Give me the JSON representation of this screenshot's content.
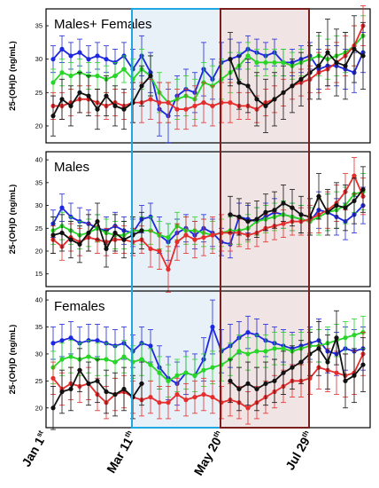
{
  "chart_data": {
    "type": "line",
    "x_date_labels": [
      {
        "main": "Jan 1",
        "sup": "st",
        "week": 1
      },
      {
        "main": "Mar 11",
        "sup": "th",
        "week": 11
      },
      {
        "main": "May 20",
        "sup": "th",
        "week": 21
      },
      {
        "main": "Jul 29",
        "sup": "th",
        "week": 31
      }
    ],
    "shaded_regions": [
      {
        "start_week": 11,
        "end_week": 21,
        "color": "#1ea7e0",
        "fill": "#e8f1f8"
      },
      {
        "start_week": 21,
        "end_week": 31,
        "color": "#7a1e1e",
        "fill": "#f1e4e4"
      }
    ],
    "series_colors": {
      "blue": "#1d27e0",
      "green": "#27d627",
      "red": "#e62c2c",
      "black": "#111111"
    },
    "panels": [
      {
        "title": "Males+ Females",
        "ylabel": "25-(OH)D (ng/mL)",
        "ylim": [
          18,
          37
        ],
        "yticks": [
          20,
          25,
          30,
          35
        ],
        "series": [
          {
            "color": "blue",
            "values": [
              30.0,
              31.5,
              30.5,
              31.0,
              30.0,
              30.5,
              30.0,
              29.5,
              30.5,
              28.5,
              30.5,
              28.0,
              22.5,
              21.5,
              24.5,
              25.5,
              25.0,
              28.5,
              27.0,
              29.5,
              30.0,
              30.5,
              31.5,
              31.0,
              30.5,
              31.0,
              29.5,
              29.5,
              30.0,
              30.5,
              28.5,
              29.0,
              29.0,
              28.5,
              28.0,
              31.0
            ],
            "err": [
              2,
              2,
              2,
              2,
              2,
              2,
              2,
              2,
              2,
              3,
              3,
              3,
              4,
              4,
              3,
              3,
              3,
              4,
              3,
              3,
              3,
              2,
              2,
              2,
              2,
              2,
              2,
              2,
              2,
              2,
              3,
              3,
              3,
              3,
              3,
              3
            ]
          },
          {
            "color": "green",
            "values": [
              26.5,
              28.0,
              27.5,
              28.0,
              27.5,
              27.5,
              27.0,
              27.5,
              28.5,
              27.0,
              28.5,
              27.5,
              25.0,
              23.5,
              24.0,
              24.5,
              24.0,
              26.5,
              26.0,
              27.0,
              28.0,
              29.0,
              30.5,
              29.5,
              29.5,
              29.5,
              29.5,
              29.0,
              29.5,
              30.0,
              30.5,
              30.0,
              30.5,
              31.0,
              32.0,
              33.5
            ],
            "err": [
              2,
              2,
              2,
              2,
              2,
              2,
              2,
              2,
              2,
              3,
              3,
              3,
              3,
              3,
              3,
              3,
              3,
              3,
              3,
              3,
              3,
              2,
              2,
              2,
              2,
              2,
              2,
              2,
              2,
              2,
              3,
              3,
              3,
              3,
              3,
              3
            ]
          },
          {
            "color": "red",
            "values": [
              23.0,
              23.0,
              23.5,
              24.0,
              24.0,
              23.5,
              23.0,
              23.5,
              23.0,
              23.5,
              23.5,
              24.0,
              23.5,
              23.5,
              22.5,
              22.5,
              23.0,
              23.5,
              23.0,
              23.5,
              23.5,
              23.0,
              23.0,
              22.5,
              23.5,
              24.0,
              25.0,
              26.0,
              26.5,
              27.0,
              28.0,
              28.5,
              29.5,
              30.5,
              32.0,
              35.0
            ],
            "err": [
              2,
              2,
              2,
              2,
              2,
              2,
              2,
              2,
              2,
              3,
              3,
              3,
              3,
              3,
              3,
              3,
              3,
              3,
              3,
              3,
              3,
              2,
              2,
              2,
              2,
              2,
              2,
              2,
              2,
              2,
              3,
              3,
              3,
              3,
              3,
              3
            ]
          },
          {
            "color": "black",
            "values": [
              21.5,
              24.0,
              23.0,
              25.0,
              24.5,
              22.5,
              24.5,
              23.0,
              22.5,
              23.5,
              26.0,
              27.5,
              null,
              null,
              null,
              null,
              null,
              null,
              null,
              null,
              30.0,
              26.5,
              26.0,
              24.0,
              23.0,
              24.0,
              25.0,
              26.0,
              27.0,
              28.0,
              29.0,
              31.0,
              29.5,
              29.0,
              31.5,
              30.5
            ],
            "err": [
              3,
              3,
              3,
              3,
              3,
              3,
              3,
              3,
              3,
              3,
              3,
              3,
              0,
              0,
              0,
              0,
              0,
              0,
              0,
              0,
              4,
              4,
              4,
              4,
              4,
              4,
              4,
              4,
              4,
              4,
              5,
              5,
              5,
              5,
              5,
              5
            ]
          }
        ]
      },
      {
        "title": "Males",
        "ylabel": "25-(OH)D (ng/mL)",
        "ylim": [
          13,
          41
        ],
        "yticks": [
          15,
          20,
          25,
          30,
          35,
          40
        ],
        "series": [
          {
            "color": "blue",
            "values": [
              26.0,
              29.5,
              27.5,
              26.5,
              26.0,
              25.0,
              24.5,
              25.5,
              24.5,
              24.0,
              27.0,
              27.5,
              23.5,
              22.0,
              24.0,
              25.0,
              23.5,
              25.0,
              24.0,
              22.0,
              21.5,
              27.5,
              27.0,
              26.5,
              27.5,
              28.5,
              28.0,
              27.5,
              27.0,
              26.5,
              29.0,
              28.5,
              27.5,
              26.5,
              28.0,
              30.0
            ],
            "err": [
              3,
              3,
              3,
              3,
              3,
              3,
              3,
              3,
              3,
              3,
              3,
              3,
              4,
              4,
              3,
              3,
              3,
              3,
              3,
              3,
              3,
              3,
              3,
              3,
              3,
              3,
              3,
              3,
              3,
              3,
              4,
              4,
              4,
              4,
              4,
              4
            ]
          },
          {
            "color": "green",
            "values": [
              24.5,
              25.5,
              24.5,
              23.5,
              24.0,
              25.0,
              24.0,
              23.5,
              23.5,
              24.5,
              24.5,
              24.5,
              23.5,
              23.0,
              25.5,
              24.5,
              24.5,
              24.0,
              23.5,
              24.0,
              24.5,
              24.5,
              25.0,
              26.5,
              27.0,
              27.5,
              28.0,
              27.5,
              27.0,
              26.5,
              27.5,
              28.5,
              29.0,
              30.0,
              32.5,
              33.0
            ],
            "err": [
              3,
              3,
              3,
              3,
              3,
              3,
              3,
              3,
              3,
              3,
              3,
              3,
              3,
              3,
              3,
              3,
              3,
              3,
              3,
              3,
              3,
              3,
              3,
              3,
              3,
              3,
              3,
              3,
              3,
              3,
              4,
              4,
              4,
              4,
              4,
              4
            ]
          },
          {
            "color": "red",
            "values": [
              22.5,
              21.0,
              23.0,
              22.0,
              23.0,
              22.5,
              22.0,
              22.5,
              22.5,
              22.0,
              22.5,
              20.5,
              20.0,
              16.0,
              22.0,
              23.5,
              22.5,
              23.0,
              23.5,
              24.0,
              24.0,
              24.0,
              23.5,
              24.0,
              25.0,
              25.5,
              26.0,
              26.5,
              26.5,
              27.0,
              28.0,
              29.0,
              30.5,
              33.0,
              36.5,
              32.0
            ],
            "err": [
              3,
              3,
              3,
              3,
              3,
              3,
              3,
              3,
              3,
              3,
              3,
              4,
              4,
              5,
              4,
              4,
              4,
              4,
              4,
              4,
              4,
              3,
              3,
              3,
              3,
              3,
              3,
              3,
              3,
              3,
              4,
              4,
              4,
              4,
              4,
              4
            ]
          },
          {
            "color": "black",
            "values": [
              23.5,
              24.0,
              22.5,
              21.5,
              24.0,
              26.5,
              20.5,
              24.0,
              22.5,
              23.5,
              24.5,
              null,
              null,
              null,
              null,
              null,
              null,
              null,
              null,
              null,
              28.0,
              27.5,
              26.5,
              27.0,
              28.5,
              29.0,
              30.5,
              29.5,
              28.0,
              27.5,
              32.0,
              28.5,
              30.0,
              29.5,
              31.0,
              33.5
            ],
            "err": [
              4,
              4,
              4,
              4,
              4,
              4,
              4,
              4,
              4,
              4,
              4,
              0,
              0,
              0,
              0,
              0,
              0,
              0,
              0,
              0,
              4,
              4,
              4,
              4,
              4,
              4,
              4,
              4,
              4,
              4,
              5,
              5,
              5,
              5,
              5,
              5
            ]
          }
        ]
      },
      {
        "title": "Females",
        "ylabel": "25-(OH)D (ng/mL)",
        "ylim": [
          17,
          41
        ],
        "yticks": [
          20,
          25,
          30,
          35,
          40
        ],
        "series": [
          {
            "color": "blue",
            "values": [
              32.0,
              32.5,
              33.0,
              32.0,
              32.5,
              32.5,
              32.0,
              31.5,
              32.0,
              30.5,
              32.0,
              31.5,
              27.5,
              25.5,
              24.5,
              26.5,
              26.0,
              29.0,
              35.0,
              30.5,
              31.5,
              33.0,
              34.0,
              33.5,
              32.5,
              32.0,
              31.5,
              31.0,
              31.5,
              32.0,
              32.5,
              30.5,
              30.0,
              31.0,
              30.5,
              31.0
            ],
            "err": [
              3,
              3,
              3,
              3,
              3,
              3,
              3,
              3,
              3,
              3,
              3,
              3,
              4,
              4,
              4,
              4,
              4,
              4,
              5,
              4,
              4,
              3,
              3,
              3,
              3,
              3,
              3,
              3,
              3,
              3,
              4,
              4,
              4,
              4,
              4,
              4
            ]
          },
          {
            "color": "green",
            "values": [
              27.5,
              29.0,
              29.5,
              29.0,
              29.5,
              29.0,
              29.0,
              28.5,
              29.5,
              28.5,
              29.0,
              28.0,
              26.5,
              25.0,
              26.0,
              26.5,
              26.0,
              27.0,
              27.5,
              28.0,
              29.0,
              30.5,
              30.0,
              30.5,
              30.5,
              31.0,
              31.0,
              30.5,
              31.0,
              31.5,
              31.5,
              32.0,
              32.5,
              33.0,
              33.5,
              34.0
            ],
            "err": [
              3,
              3,
              3,
              3,
              3,
              3,
              3,
              3,
              3,
              3,
              3,
              3,
              3,
              3,
              3,
              3,
              3,
              3,
              3,
              3,
              3,
              3,
              3,
              3,
              3,
              3,
              3,
              3,
              3,
              3,
              3,
              3,
              3,
              3,
              3,
              3
            ]
          },
          {
            "color": "red",
            "values": [
              25.5,
              23.5,
              24.5,
              24.0,
              24.5,
              22.5,
              21.0,
              22.5,
              23.0,
              22.0,
              21.5,
              22.0,
              21.0,
              21.0,
              22.5,
              21.5,
              22.0,
              22.5,
              22.0,
              21.0,
              21.5,
              21.0,
              20.0,
              21.0,
              22.0,
              23.0,
              24.0,
              25.0,
              25.0,
              25.5,
              27.5,
              27.0,
              26.5,
              26.0,
              26.5,
              30.0
            ],
            "err": [
              3,
              3,
              3,
              3,
              3,
              3,
              3,
              3,
              3,
              3,
              3,
              3,
              3,
              3,
              3,
              3,
              3,
              3,
              3,
              3,
              3,
              3,
              3,
              3,
              3,
              3,
              3,
              3,
              3,
              3,
              4,
              4,
              4,
              4,
              4,
              4
            ]
          },
          {
            "color": "black",
            "values": [
              20.0,
              23.0,
              23.5,
              27.0,
              24.5,
              25.0,
              23.0,
              22.5,
              23.5,
              22.0,
              24.5,
              null,
              null,
              null,
              null,
              null,
              null,
              null,
              null,
              null,
              25.0,
              23.5,
              24.5,
              23.5,
              24.5,
              25.0,
              26.5,
              27.5,
              28.5,
              30.0,
              31.0,
              28.5,
              33.0,
              25.0,
              26.0,
              28.0
            ],
            "err": [
              4,
              4,
              4,
              4,
              4,
              4,
              4,
              4,
              4,
              4,
              4,
              0,
              0,
              0,
              0,
              0,
              0,
              0,
              0,
              0,
              4,
              4,
              4,
              4,
              4,
              4,
              4,
              4,
              4,
              4,
              5,
              5,
              5,
              5,
              5,
              5
            ]
          }
        ]
      }
    ]
  }
}
